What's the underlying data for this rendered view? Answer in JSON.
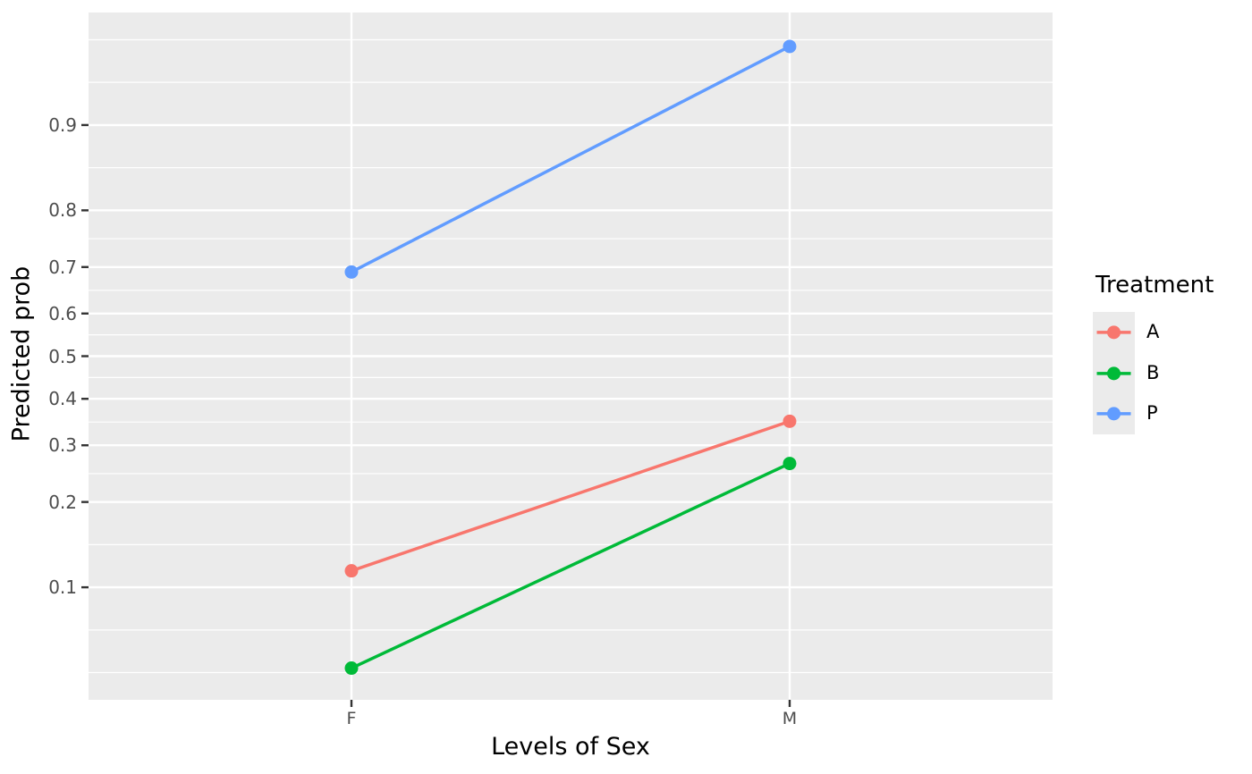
{
  "colors": {
    "figure_background": "#FFFFFF",
    "panel_background": "#EBEBEB",
    "grid": "#FFFFFF",
    "tick_mark": "#333333",
    "tick_label": "#4D4D4D",
    "title_text": "#000000"
  },
  "chart_data": {
    "type": "line",
    "title": "",
    "xlabel": "Levels of Sex",
    "ylabel": "Predicted prob",
    "x_type": "categorical",
    "categories": [
      "F",
      "M"
    ],
    "series": [
      {
        "name": "A",
        "color": "#F8766D",
        "values": [
          0.115,
          0.35
        ]
      },
      {
        "name": "B",
        "color": "#00BA38",
        "values": [
          0.049,
          0.265
        ]
      },
      {
        "name": "P",
        "color": "#619CFF",
        "values": [
          0.69,
          0.95
        ]
      }
    ],
    "y_scale": "logit",
    "y_tick_values": [
      0.1,
      0.2,
      0.3,
      0.4,
      0.5,
      0.6,
      0.7,
      0.8,
      0.9
    ],
    "y_tick_labels": [
      "0.1",
      "0.2",
      "0.3",
      "0.4",
      "0.5",
      "0.6",
      "0.7",
      "0.8",
      "0.9"
    ],
    "y_minor_ticks_logit": [
      -3.008,
      -2.603,
      -1.792,
      -1.117,
      -0.626,
      -0.203,
      0.203,
      0.626,
      1.117,
      1.792,
      2.603,
      3.008
    ],
    "ylim_logit": [
      -3.267,
      3.267
    ],
    "grid": true,
    "legend": {
      "title": "Treatment",
      "position": "right"
    }
  }
}
